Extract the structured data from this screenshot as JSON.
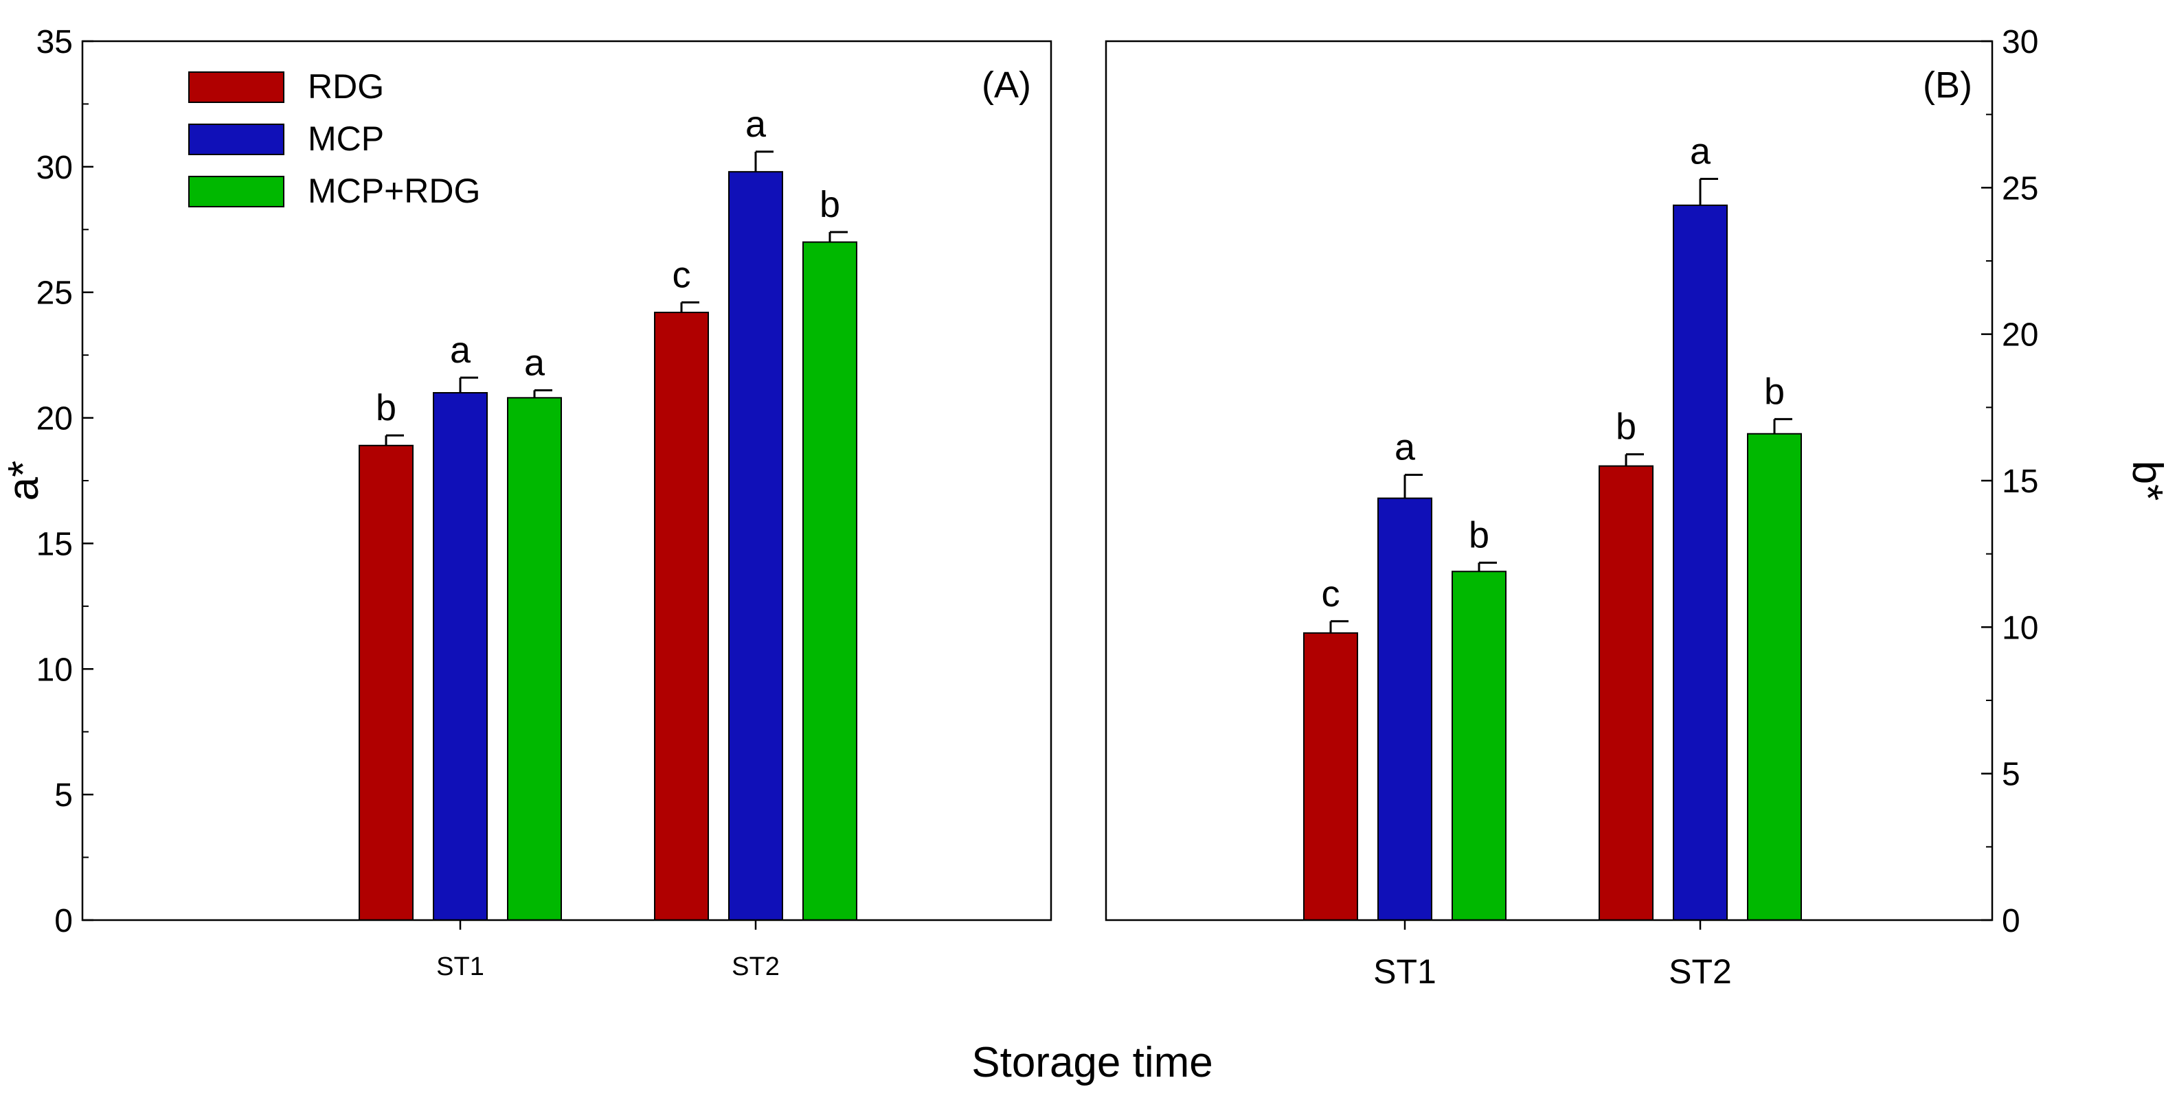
{
  "figure": {
    "xlabel": "Storage time"
  },
  "chart_data": [
    {
      "type": "bar",
      "panel_label": "(A)",
      "ylabel": "a*",
      "ylim": [
        0,
        35
      ],
      "yticks": [
        0,
        5,
        10,
        15,
        20,
        25,
        30,
        35
      ],
      "categories": [
        "ST1",
        "ST2"
      ],
      "legend": {
        "placement": "top-left",
        "entries": [
          "RDG",
          "MCP",
          "MCP+RDG"
        ]
      },
      "series": [
        {
          "name": "RDG",
          "color": "#b00000",
          "values": [
            18.9,
            24.2
          ],
          "errors": [
            0.4,
            0.4
          ],
          "letters": [
            "b",
            "c"
          ]
        },
        {
          "name": "MCP",
          "color": "#1010b8",
          "values": [
            21.0,
            29.8
          ],
          "errors": [
            0.6,
            0.8
          ],
          "letters": [
            "a",
            "a"
          ]
        },
        {
          "name": "MCP+RDG",
          "color": "#00b800",
          "values": [
            20.8,
            27.0
          ],
          "errors": [
            0.3,
            0.4
          ],
          "letters": [
            "a",
            "b"
          ]
        }
      ]
    },
    {
      "type": "bar",
      "panel_label": "(B)",
      "ylabel": "b*",
      "ylim": [
        0,
        30
      ],
      "yticks": [
        0,
        5,
        10,
        15,
        20,
        25,
        30
      ],
      "categories": [
        "ST1",
        "ST2"
      ],
      "series": [
        {
          "name": "RDG",
          "color": "#b00000",
          "values": [
            9.8,
            15.5
          ],
          "errors": [
            0.4,
            0.4
          ],
          "letters": [
            "c",
            "b"
          ]
        },
        {
          "name": "MCP",
          "color": "#1010b8",
          "values": [
            14.4,
            24.4
          ],
          "errors": [
            0.8,
            0.9
          ],
          "letters": [
            "a",
            "a"
          ]
        },
        {
          "name": "MCP+RDG",
          "color": "#00b800",
          "values": [
            11.9,
            16.6
          ],
          "errors": [
            0.3,
            0.5
          ],
          "letters": [
            "b",
            "b"
          ]
        }
      ]
    }
  ]
}
